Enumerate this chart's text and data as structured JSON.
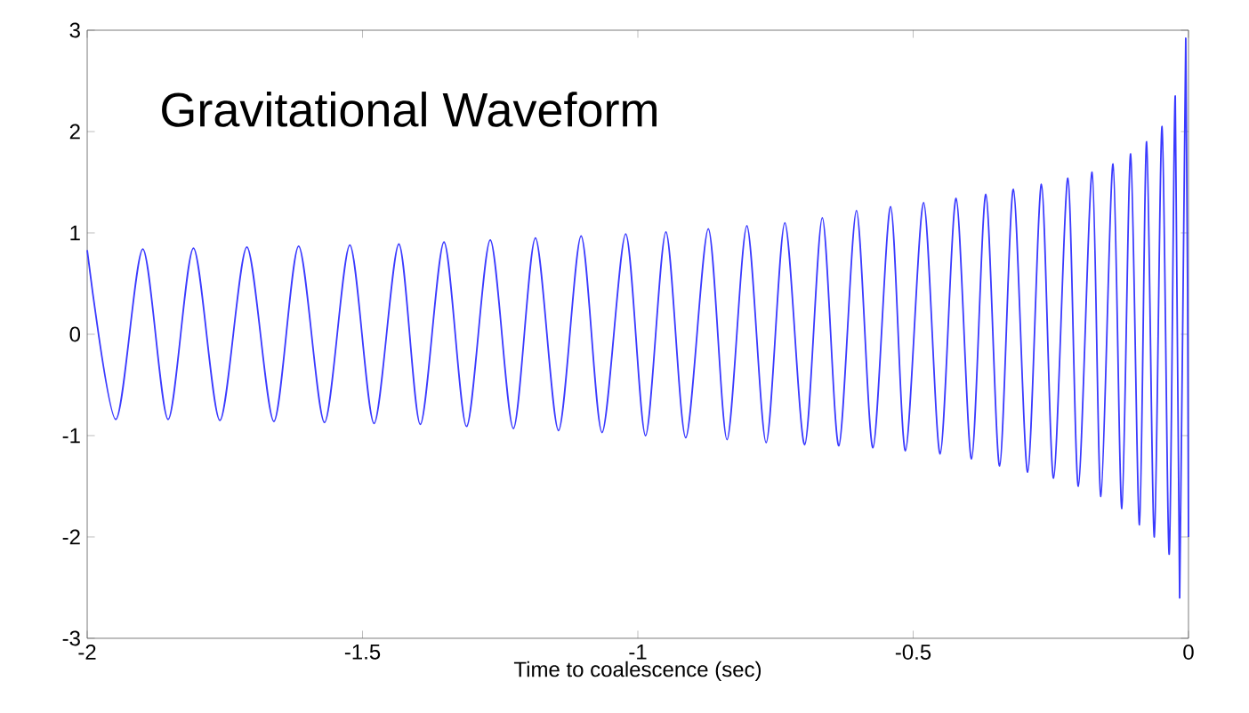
{
  "chart_data": {
    "type": "line",
    "title": "Gravitational Waveform",
    "xlabel": "Time to coalescence (sec)",
    "xlim": [
      -2,
      0
    ],
    "xticks": [
      -2,
      -1.5,
      -1,
      -0.5,
      0
    ],
    "ylim": [
      -3,
      3
    ],
    "yticks": [
      -3,
      -2,
      -1,
      0,
      1,
      2,
      3
    ],
    "marker": "none",
    "line_style": "solid",
    "series": [
      {
        "color": "#3a3aff",
        "x": [
          -2.0,
          -1.948,
          -1.899,
          -1.853,
          -1.807,
          -1.759,
          -1.71,
          -1.661,
          -1.616,
          -1.569,
          -1.523,
          -1.479,
          -1.434,
          -1.395,
          -1.352,
          -1.311,
          -1.268,
          -1.226,
          -1.186,
          -1.144,
          -1.103,
          -1.065,
          -1.022,
          -0.986,
          -0.949,
          -0.913,
          -0.872,
          -0.838,
          -0.802,
          -0.767,
          -0.733,
          -0.697,
          -0.665,
          -0.635,
          -0.603,
          -0.573,
          -0.541,
          -0.514,
          -0.481,
          -0.451,
          -0.422,
          -0.394,
          -0.368,
          -0.343,
          -0.318,
          -0.292,
          -0.267,
          -0.245,
          -0.219,
          -0.2,
          -0.175,
          -0.159,
          -0.137,
          -0.121,
          -0.105,
          -0.089,
          -0.076,
          -0.062,
          -0.048,
          -0.035,
          -0.024,
          -0.016,
          -0.005,
          0
        ],
        "values": [
          0.83,
          -0.84,
          0.84,
          -0.84,
          0.85,
          -0.85,
          0.86,
          -0.86,
          0.87,
          -0.87,
          0.88,
          -0.88,
          0.89,
          -0.89,
          0.91,
          -0.91,
          0.93,
          -0.93,
          0.95,
          -0.95,
          0.97,
          -0.97,
          0.99,
          -1.0,
          1.01,
          -1.02,
          1.04,
          -1.04,
          1.07,
          -1.07,
          1.1,
          -1.09,
          1.15,
          -1.1,
          1.22,
          -1.12,
          1.26,
          -1.15,
          1.3,
          -1.18,
          1.34,
          -1.23,
          1.38,
          -1.3,
          1.43,
          -1.36,
          1.48,
          -1.42,
          1.54,
          -1.5,
          1.6,
          -1.6,
          1.68,
          -1.72,
          1.78,
          -1.88,
          1.9,
          -2.0,
          2.05,
          -2.17,
          2.35,
          -2.6,
          2.92,
          -2.0
        ]
      }
    ]
  }
}
